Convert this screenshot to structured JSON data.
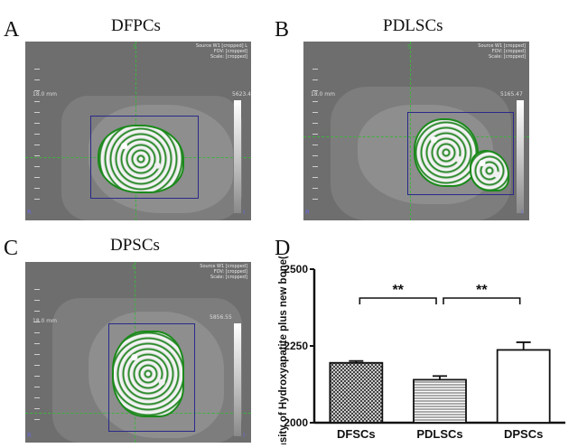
{
  "panels": [
    {
      "letter": "A",
      "title": "DFPCs",
      "source": "Source W1 [cropped] L",
      "fov": "FOV: [cropped]",
      "scale": "Scale: [cropped]",
      "scale_label": "5623.4",
      "mm": "18.0 mm",
      "marker_top": "S",
      "marker_left": "R",
      "marker_right": "I"
    },
    {
      "letter": "B",
      "title": "PDLSCs",
      "source": "Source W1 [cropped]",
      "fov": "FOV: [cropped]",
      "scale": "Scale: [cropped]",
      "scale_label": "5165.47",
      "mm": "18.0 mm",
      "marker_top": "S",
      "marker_left": "R",
      "marker_right": "I"
    },
    {
      "letter": "C",
      "title": "DPSCs",
      "source": "Source W1 [cropped]",
      "fov": "FOV: [cropped]",
      "scale": "Scale: [cropped]",
      "scale_label": "5856.55",
      "mm": "18.0 mm",
      "marker_top": "S",
      "marker_left": "R",
      "marker_right": "I"
    },
    {
      "letter": "D"
    }
  ],
  "chart_data": {
    "type": "bar",
    "title": "",
    "xlabel": "",
    "ylabel": "Density of Hydroxyapatite plus new bone(mg/cc)",
    "categories": [
      "DFSCs",
      "PDLSCs",
      "DPSCs"
    ],
    "values": [
      2195,
      2140,
      2237
    ],
    "errors": [
      6,
      12,
      25
    ],
    "ylim": [
      2000,
      2500
    ],
    "yticks": [
      "2000",
      "2250",
      "2500"
    ],
    "patterns": [
      "crosshatch",
      "horizontal-lines",
      "open"
    ],
    "significance": [
      {
        "from": 0,
        "to": 1,
        "label": "**"
      },
      {
        "from": 1,
        "to": 2,
        "label": "**"
      }
    ],
    "grid": false
  }
}
